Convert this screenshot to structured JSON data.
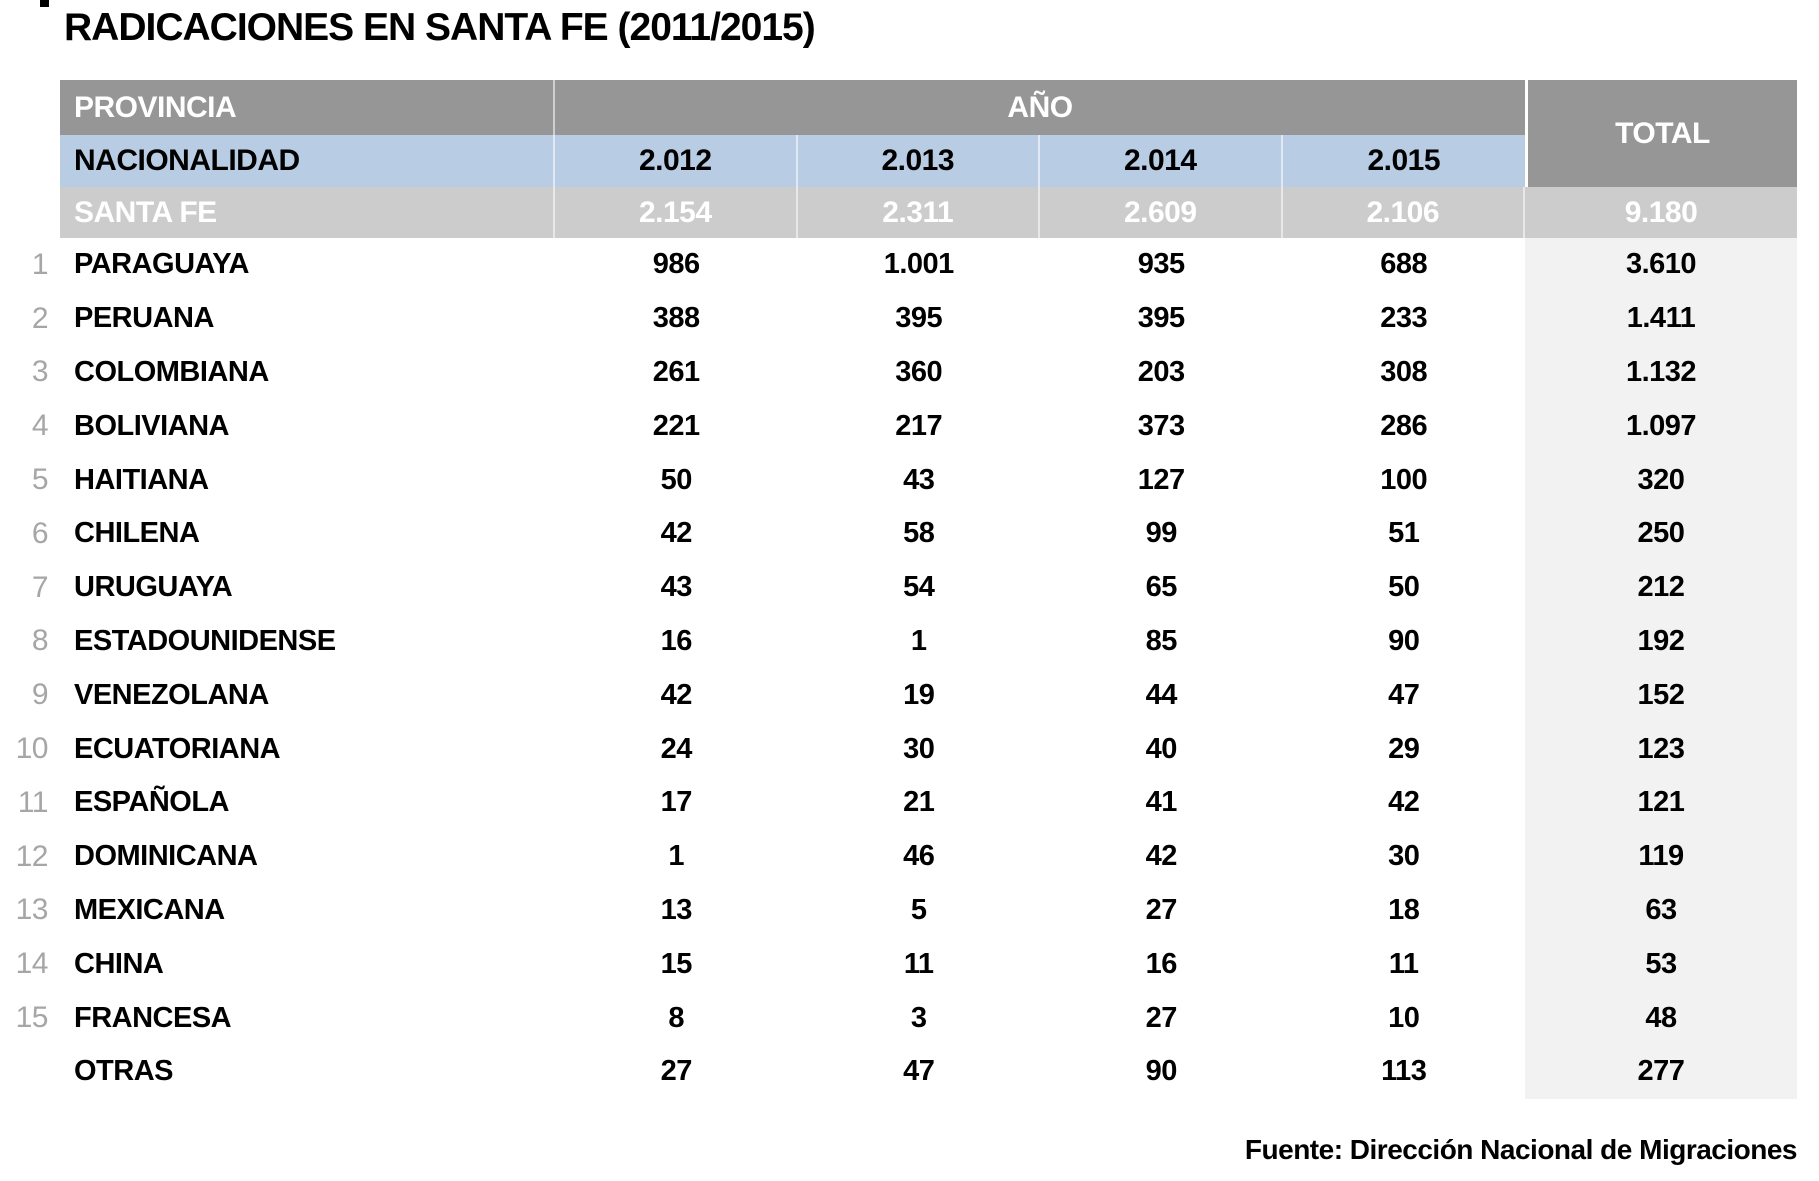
{
  "chart_data": {
    "type": "table",
    "title": "RADICACIONES EN SANTA FE (2011/2015)",
    "header": {
      "provincia": "PROVINCIA",
      "ano": "AÑO",
      "nacionalidad": "NACIONALIDAD",
      "total": "TOTAL",
      "years": [
        "2.012",
        "2.013",
        "2.014",
        "2.015"
      ]
    },
    "summary_row": {
      "label": "SANTA FE",
      "values": [
        "2.154",
        "2.311",
        "2.609",
        "2.106"
      ],
      "total": "9.180"
    },
    "rows": [
      {
        "rank": "1",
        "label": "PARAGUAYA",
        "values": [
          "986",
          "1.001",
          "935",
          "688"
        ],
        "total": "3.610"
      },
      {
        "rank": "2",
        "label": "PERUANA",
        "values": [
          "388",
          "395",
          "395",
          "233"
        ],
        "total": "1.411"
      },
      {
        "rank": "3",
        "label": "COLOMBIANA",
        "values": [
          "261",
          "360",
          "203",
          "308"
        ],
        "total": "1.132"
      },
      {
        "rank": "4",
        "label": "BOLIVIANA",
        "values": [
          "221",
          "217",
          "373",
          "286"
        ],
        "total": "1.097"
      },
      {
        "rank": "5",
        "label": "HAITIANA",
        "values": [
          "50",
          "43",
          "127",
          "100"
        ],
        "total": "320"
      },
      {
        "rank": "6",
        "label": "CHILENA",
        "values": [
          "42",
          "58",
          "99",
          "51"
        ],
        "total": "250"
      },
      {
        "rank": "7",
        "label": "URUGUAYA",
        "values": [
          "43",
          "54",
          "65",
          "50"
        ],
        "total": "212"
      },
      {
        "rank": "8",
        "label": "ESTADOUNIDENSE",
        "values": [
          "16",
          "1",
          "85",
          "90"
        ],
        "total": "192"
      },
      {
        "rank": "9",
        "label": "VENEZOLANA",
        "values": [
          "42",
          "19",
          "44",
          "47"
        ],
        "total": "152"
      },
      {
        "rank": "10",
        "label": "ECUATORIANA",
        "values": [
          "24",
          "30",
          "40",
          "29"
        ],
        "total": "123"
      },
      {
        "rank": "11",
        "label": "ESPAÑOLA",
        "values": [
          "17",
          "21",
          "41",
          "42"
        ],
        "total": "121"
      },
      {
        "rank": "12",
        "label": "DOMINICANA",
        "values": [
          "1",
          "46",
          "42",
          "30"
        ],
        "total": "119"
      },
      {
        "rank": "13",
        "label": "MEXICANA",
        "values": [
          "13",
          "5",
          "27",
          "18"
        ],
        "total": "63"
      },
      {
        "rank": "14",
        "label": "CHINA",
        "values": [
          "15",
          "11",
          "16",
          "11"
        ],
        "total": "53"
      },
      {
        "rank": "15",
        "label": "FRANCESA",
        "values": [
          "8",
          "3",
          "27",
          "10"
        ],
        "total": "48"
      },
      {
        "rank": "",
        "label": "OTRAS",
        "values": [
          "27",
          "47",
          "90",
          "113"
        ],
        "total": "277"
      }
    ],
    "source": "Fuente: Dirección Nacional de Migraciones"
  },
  "colors": {
    "header_gray": "#969696",
    "header_blue": "#b8cce4",
    "summary_gray": "#cccccc",
    "total_column_bg": "#f2f2f2",
    "rank_gray": "#a6a6a6",
    "text_black": "#000000",
    "text_white": "#ffffff"
  }
}
